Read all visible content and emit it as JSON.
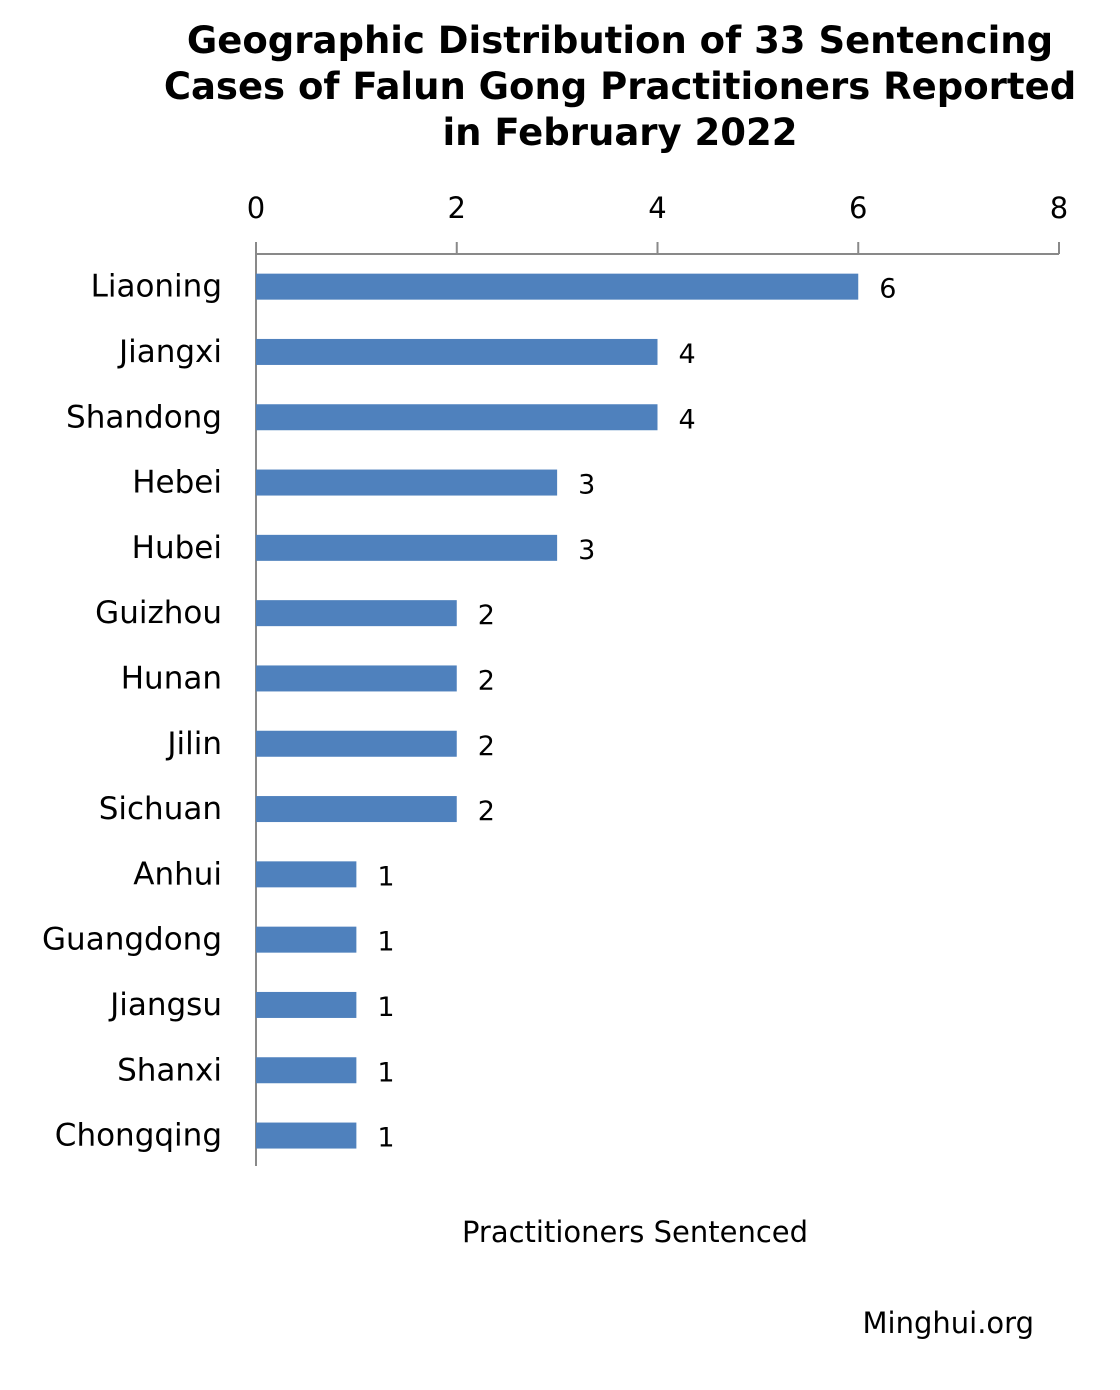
{
  "chart_data": {
    "type": "bar",
    "orientation": "horizontal",
    "title_lines": [
      "Geographic Distribution of 33 Sentencing",
      "Cases of Falun Gong Practitioners Reported",
      "in February 2022"
    ],
    "title": "Geographic Distribution of 33 Sentencing Cases of Falun Gong Practitioners Reported in February 2022",
    "categories": [
      "Liaoning",
      "Jiangxi",
      "Shandong",
      "Hebei",
      "Hubei",
      "Guizhou",
      "Hunan",
      "Jilin",
      "Sichuan",
      "Anhui",
      "Guangdong",
      "Jiangsu",
      "Shanxi",
      "Chongqing"
    ],
    "values": [
      6,
      4,
      4,
      3,
      3,
      2,
      2,
      2,
      2,
      1,
      1,
      1,
      1,
      1
    ],
    "xlabel": "Practitioners Sentenced",
    "ylabel": "",
    "xlim": [
      0,
      8
    ],
    "xticks": [
      0,
      2,
      4,
      6,
      8
    ],
    "axis_position": "top",
    "data_labels": true,
    "grid": false,
    "legend": "none",
    "bar_color": "#4f81bd"
  },
  "watermark": "Minghui.org"
}
